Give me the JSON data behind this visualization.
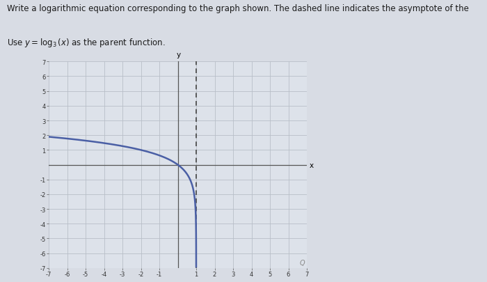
{
  "title_line1": "Write a logarithmic equation corresponding to the graph shown. The dashed line indicates the asymptote of the",
  "title_line2_math": "Use $y = \\log_3(x)$ as the parent function.",
  "xlim": [
    -7,
    7
  ],
  "ylim": [
    -7,
    7
  ],
  "xlabel": "x",
  "ylabel": "y",
  "asymptote_x": 1,
  "curve_color": "#4a5fa5",
  "asymptote_color": "#444444",
  "grid_color": "#b8bfc8",
  "bg_color": "#dde2ea",
  "fig_bg_color": "#d8dce4",
  "plot_bg_color": "#cdd3dc",
  "base": 3,
  "font_size_title": 8.5,
  "font_size_label": 7.5,
  "tick_fontsize": 6.0,
  "q_text": "Q"
}
